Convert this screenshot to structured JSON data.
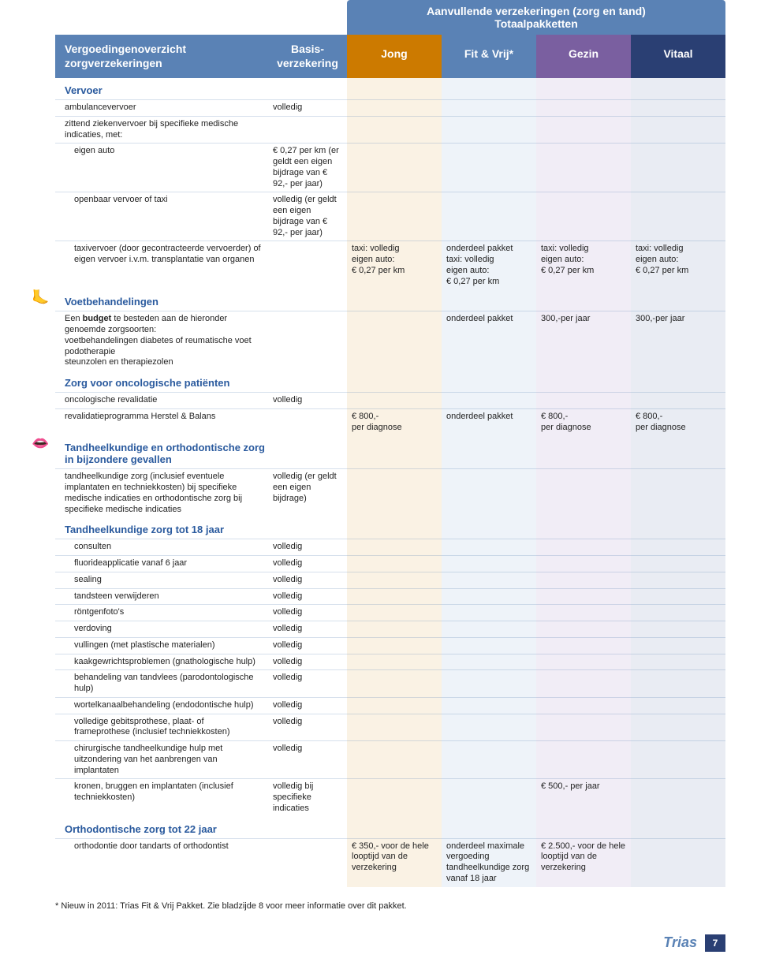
{
  "header": {
    "aanvullend_title": "Aanvullende verzekeringen (zorg en tand)\nTotaalpakketten",
    "main_title": "Vergoedingenoverzicht\nzorgverzekeringen",
    "basis_title": "Basis-\nverzekering",
    "plans": [
      "Jong",
      "Fit & Vrij*",
      "Gezin",
      "Vitaal"
    ]
  },
  "colors": {
    "brand_blue": "#5a82b5",
    "jong": "#cc7a00",
    "fit": "#5a82b5",
    "gezin": "#7a5fa0",
    "vitaal": "#2a3f73",
    "section_heading": "#2a5a9e"
  },
  "sections": [
    {
      "id": "vervoer",
      "title": "Vervoer",
      "rows": [
        {
          "label": "ambulancevervoer",
          "indent": 0,
          "basis": "volledig"
        },
        {
          "label": "zittend ziekenvervoer bij specifieke medische indicaties, met:",
          "indent": 0
        },
        {
          "label": "eigen auto",
          "indent": 1,
          "basis": "€ 0,27 per km (er geldt een eigen bijdrage van € 92,- per jaar)"
        },
        {
          "label": "openbaar vervoer of taxi",
          "indent": 1,
          "basis": "volledig (er geldt een eigen bijdrage van € 92,- per jaar)"
        },
        {
          "label": "taxivervoer (door gecontracteerde vervoerder) of eigen vervoer i.v.m. transplantatie van organen",
          "indent": 1,
          "jong": "taxi: volledig\neigen auto:\n€ 0,27 per km",
          "fit": "onderdeel pakket\ntaxi: volledig\neigen auto:\n€ 0,27 per km",
          "gezin": "taxi: volledig\neigen auto:\n€ 0,27 per km",
          "vitaal": "taxi: volledig\neigen auto:\n€ 0,27 per km"
        }
      ]
    },
    {
      "id": "voetbehandelingen",
      "title": "Voetbehandelingen",
      "icon": "foot-icon",
      "rows": [
        {
          "label_html": "Een <b>budget</b> te besteden aan de hieronder genoemde zorgsoorten:\n  voetbehandelingen diabetes of reumatische voet\n  podotherapie\n  steunzolen en therapiezolen",
          "indent": 0,
          "fit": "onderdeel pakket",
          "gezin": "300,-per jaar",
          "vitaal": "300,-per jaar"
        }
      ]
    },
    {
      "id": "oncologisch",
      "title": "Zorg voor oncologische patiënten",
      "rows": [
        {
          "label": "oncologische revalidatie",
          "indent": 0,
          "basis": "volledig"
        },
        {
          "label": "revalidatieprogramma Herstel & Balans",
          "indent": 0,
          "jong": "€ 800,-\nper diagnose",
          "fit": "onderdeel pakket",
          "gezin": "€ 800,-\nper diagnose",
          "vitaal": "€ 800,-\nper diagnose"
        }
      ]
    },
    {
      "id": "tand-bijzonder",
      "title": "Tandheelkundige en orthodontische zorg in bijzondere gevallen",
      "icon": "mouth-icon",
      "rows": [
        {
          "label": "tandheelkundige zorg (inclusief eventuele implantaten en techniekkosten) bij specifieke medische indicaties en orthodontische zorg bij specifieke medische indicaties",
          "indent": 0,
          "basis": "volledig (er geldt een eigen bijdrage)"
        }
      ]
    },
    {
      "id": "tand-18",
      "title": "Tandheelkundige zorg tot 18 jaar",
      "rows": [
        {
          "label": "consulten",
          "indent": 1,
          "basis": "volledig"
        },
        {
          "label": "fluorideapplicatie vanaf 6 jaar",
          "indent": 1,
          "basis": "volledig"
        },
        {
          "label": "sealing",
          "indent": 1,
          "basis": "volledig"
        },
        {
          "label": "tandsteen verwijderen",
          "indent": 1,
          "basis": "volledig"
        },
        {
          "label": "röntgenfoto's",
          "indent": 1,
          "basis": "volledig"
        },
        {
          "label": "verdoving",
          "indent": 1,
          "basis": "volledig"
        },
        {
          "label": "vullingen (met plastische materialen)",
          "indent": 1,
          "basis": "volledig"
        },
        {
          "label": "kaakgewrichtsproblemen (gnathologische hulp)",
          "indent": 1,
          "basis": "volledig"
        },
        {
          "label": "behandeling van tandvlees (parodontologische hulp)",
          "indent": 1,
          "basis": "volledig"
        },
        {
          "label": "wortelkanaalbehandeling (endodontische hulp)",
          "indent": 1,
          "basis": "volledig"
        },
        {
          "label": "volledige gebitsprothese, plaat- of frameprothese (inclusief techniekkosten)",
          "indent": 1,
          "basis": "volledig"
        },
        {
          "label": "chirurgische tandheelkundige hulp met uitzondering van het aanbrengen van implantaten",
          "indent": 1,
          "basis": "volledig"
        },
        {
          "label": "kronen, bruggen en implantaten (inclusief techniekkosten)",
          "indent": 1,
          "basis": "volledig bij specifieke indicaties",
          "gezin": "€ 500,- per jaar"
        }
      ]
    },
    {
      "id": "ortho-22",
      "title": "Orthodontische zorg tot 22 jaar",
      "rows": [
        {
          "label": "orthodontie door tandarts of orthodontist",
          "indent": 1,
          "jong": "€ 350,- voor de hele looptijd van de verzekering",
          "fit": "onderdeel maximale vergoeding tandheelkundige zorg vanaf 18 jaar",
          "gezin": "€ 2.500,- voor de hele looptijd van de verzekering"
        }
      ]
    }
  ],
  "footnote": "* Nieuw in 2011: Trias Fit & Vrij Pakket. Zie bladzijde 8 voor meer informatie over dit pakket.",
  "footer": {
    "brand": "Trias",
    "page_number": "7"
  }
}
